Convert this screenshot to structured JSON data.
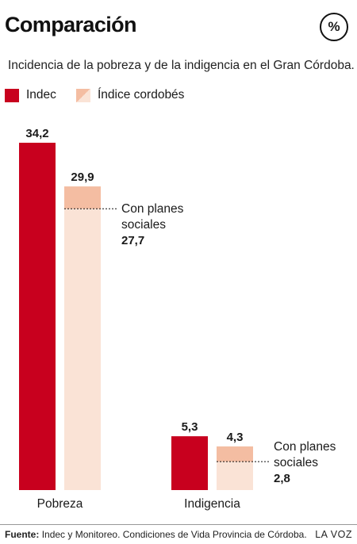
{
  "header": {
    "title": "Comparación",
    "unit": "%",
    "subtitle": "Incidencia de la pobreza y de la indigencia en el Gran Córdoba."
  },
  "legend": [
    {
      "label": "Indec",
      "color": "#c8001e"
    },
    {
      "label": "Índice cordobés",
      "color": "#f4bda2"
    }
  ],
  "colors": {
    "indec": "#c8001e",
    "cordobes_top": "#f4bda2",
    "cordobes_base": "#fae3d6"
  },
  "chart_data": {
    "type": "bar",
    "categories": [
      "Pobreza",
      "Indigencia"
    ],
    "series": [
      {
        "name": "Indec",
        "values": [
          34.2,
          5.3
        ],
        "labels": [
          "34,2",
          "5,3"
        ]
      },
      {
        "name": "Índice cordobés",
        "values": [
          29.9,
          4.3
        ],
        "labels": [
          "29,9",
          "4,3"
        ]
      }
    ],
    "annotations": [
      {
        "category": "Pobreza",
        "series": "Índice cordobés",
        "value": 27.7,
        "text_line1": "Con planes",
        "text_line2": "sociales",
        "value_label": "27,7"
      },
      {
        "category": "Indigencia",
        "series": "Índice cordobés",
        "value": 2.8,
        "text_line1": "Con planes",
        "text_line2": "sociales",
        "value_label": "2,8"
      }
    ],
    "ylim": [
      0,
      34.2
    ],
    "grid": false,
    "legend_position": "top-left"
  },
  "footer": {
    "source_label": "Fuente:",
    "source_text": "Indec y Monitoreo. Condiciones de Vida Provincia de Córdoba.",
    "brand": "LA VOZ"
  }
}
